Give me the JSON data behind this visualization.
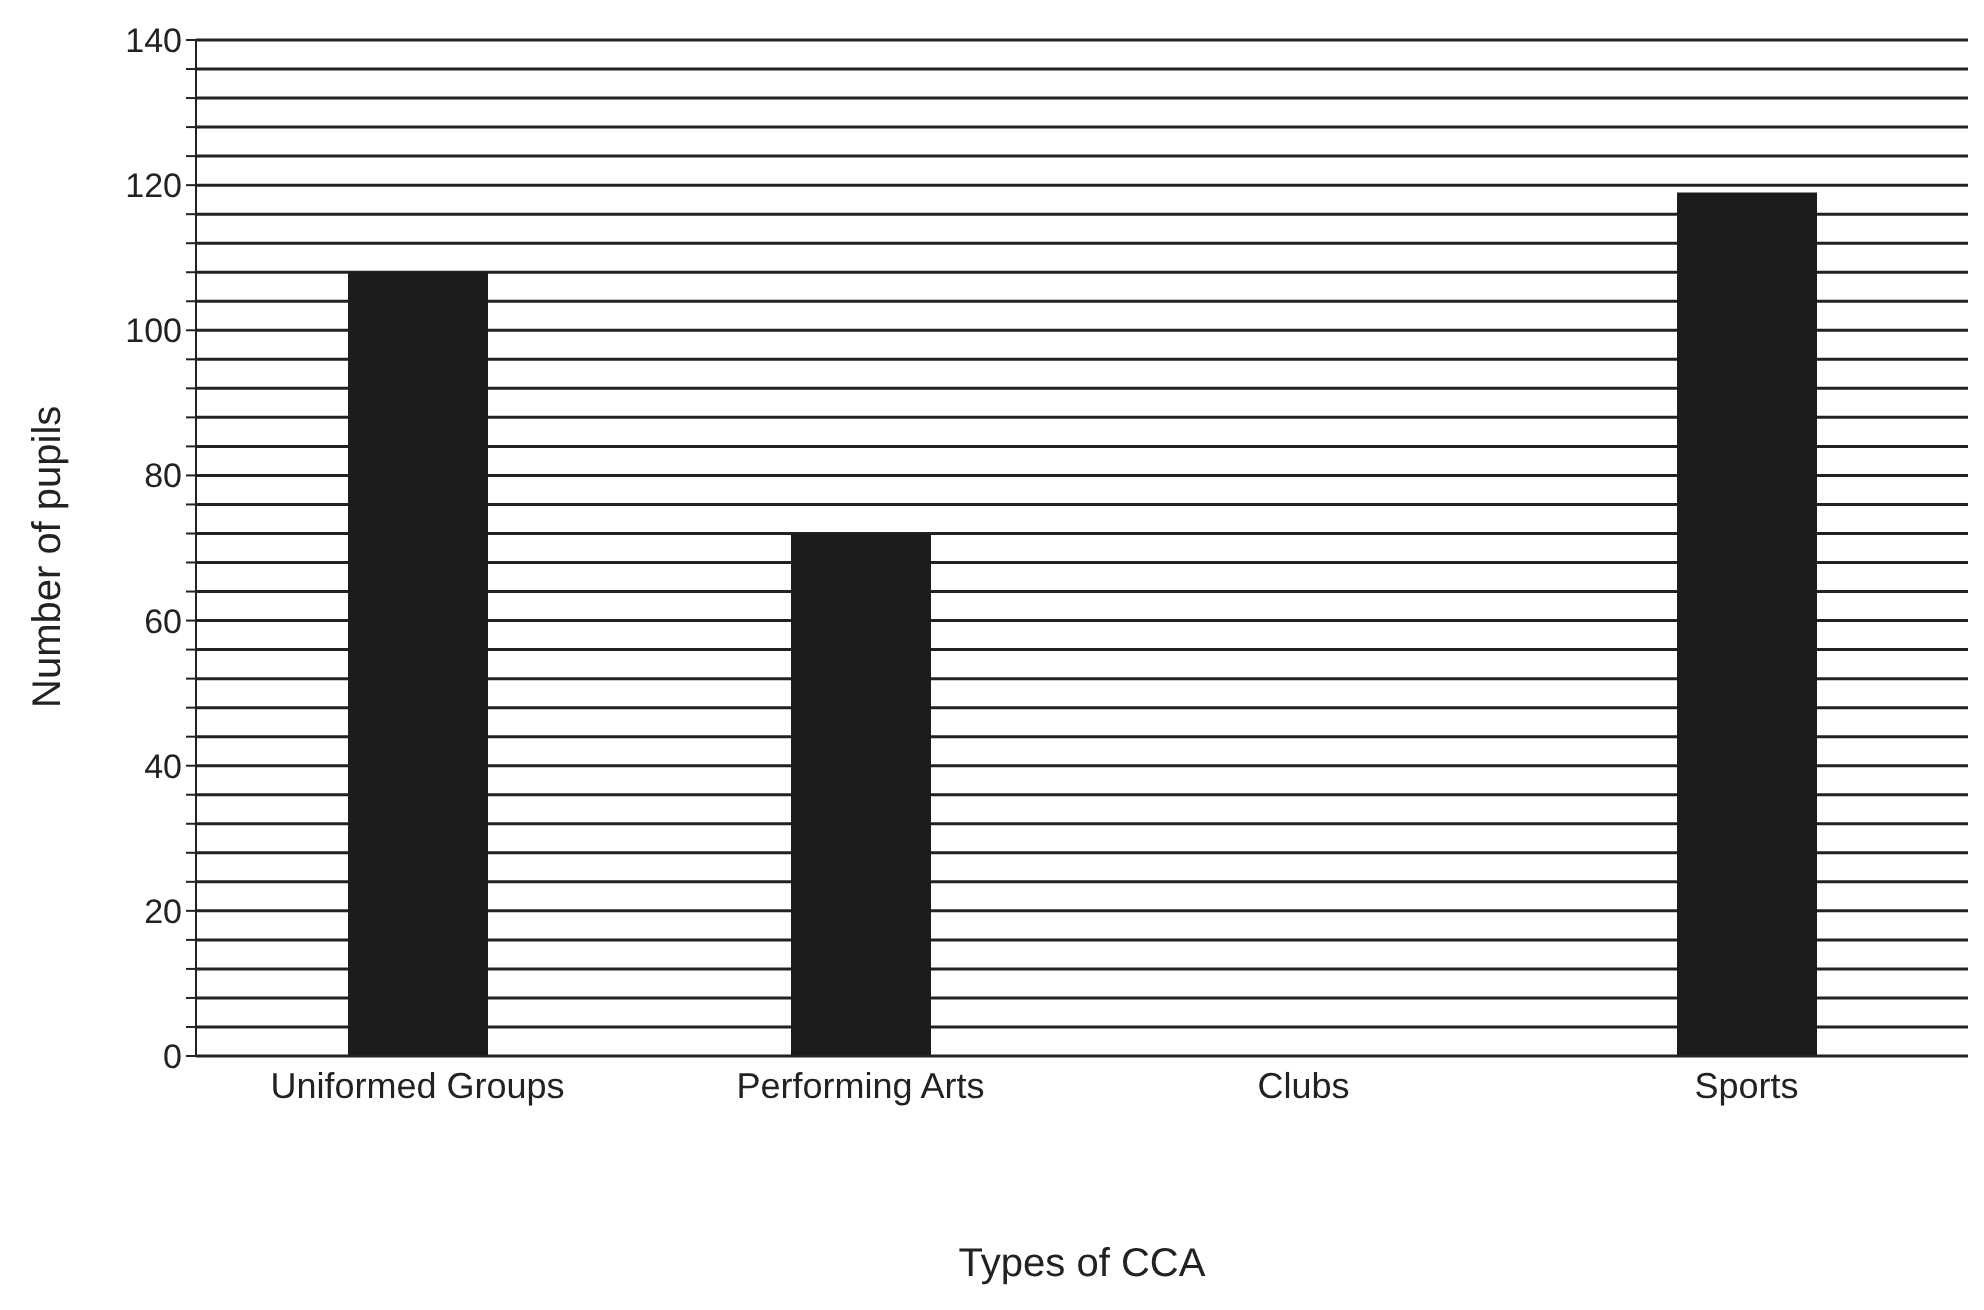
{
  "chart_data": {
    "type": "bar",
    "xlabel": "Types of CCA",
    "ylabel": "Number of pupils",
    "categories": [
      "Uniformed Groups",
      "Performing Arts",
      "Clubs",
      "Sports"
    ],
    "values": [
      108,
      72,
      null,
      119
    ],
    "color": "#1c1c1c",
    "ylim": [
      0,
      140
    ],
    "yticks": [
      0,
      {
        "value": 4,
        "label": null
      },
      {
        "value": 8,
        "label": null
      },
      {
        "value": 12,
        "label": null
      },
      {
        "value": 16,
        "label": null
      },
      20,
      {
        "value": 24,
        "label": null
      },
      {
        "value": 28,
        "label": null
      },
      {
        "value": 32,
        "label": null
      },
      {
        "value": 36,
        "label": null
      },
      40,
      {
        "value": 44,
        "label": null
      },
      {
        "value": 48,
        "label": null
      },
      {
        "value": 52,
        "label": null
      },
      {
        "value": 56,
        "label": null
      },
      60,
      {
        "value": 64,
        "label": null
      },
      {
        "value": 68,
        "label": null
      },
      {
        "value": 72,
        "label": null
      },
      {
        "value": 76,
        "label": null
      },
      80,
      {
        "value": 84,
        "label": null
      },
      {
        "value": 88,
        "label": null
      },
      {
        "value": 92,
        "label": null
      },
      {
        "value": 96,
        "label": null
      },
      100,
      {
        "value": 104,
        "label": null
      },
      {
        "value": 108,
        "label": null
      },
      {
        "value": 112,
        "label": null
      },
      {
        "value": 116,
        "label": null
      },
      120,
      {
        "value": 124,
        "label": null
      },
      {
        "value": 128,
        "label": null
      },
      {
        "value": 132,
        "label": null
      },
      {
        "value": 136,
        "label": null
      },
      140
    ],
    "grid": "y"
  }
}
